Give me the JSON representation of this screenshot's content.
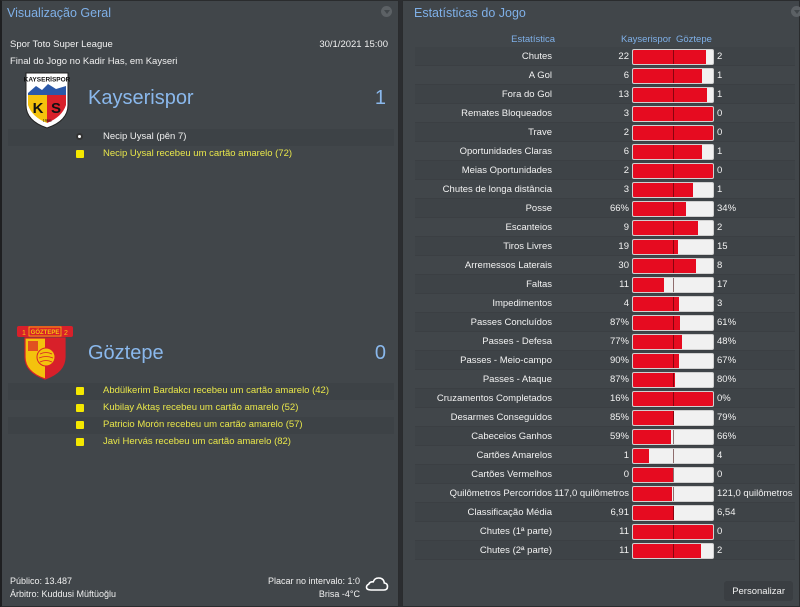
{
  "left_panel": {
    "title": "Visualização Geral",
    "competition": "Spor Toto Super League",
    "datetime": "30/1/2021 15:00",
    "venue_line": "Final do Jogo no Kadir Has, em Kayseri",
    "home": {
      "name": "Kayserispor",
      "score": "1",
      "crest_text": "KAYSERİSPOR",
      "crest_letters": "KS",
      "crest_year": "1966",
      "events": [
        {
          "type": "goal",
          "icon": "ball-icon",
          "text": "Necip Uysal (pên 7)"
        },
        {
          "type": "yellow-card",
          "icon": "yellow-card-icon",
          "text": "Necip Uysal recebeu um cartão amarelo (72)"
        }
      ]
    },
    "away": {
      "name": "Göztepe",
      "score": "0",
      "crest_text": "GÖZTEPE",
      "events": [
        {
          "type": "yellow-card",
          "icon": "yellow-card-icon",
          "text": "Abdülkerim Bardakcı recebeu um cartão amarelo (42)"
        },
        {
          "type": "yellow-card",
          "icon": "yellow-card-icon",
          "text": "Kubilay Aktaş recebeu um cartão amarelo (52)"
        },
        {
          "type": "yellow-card",
          "icon": "yellow-card-icon",
          "text": "Patricio Morón recebeu um cartão amarelo (57)"
        },
        {
          "type": "yellow-card",
          "icon": "yellow-card-icon",
          "text": "Javi Hervás recebeu um cartão amarelo (82)"
        }
      ]
    },
    "footer": {
      "attendance": "Público: 13.487",
      "referee": "Árbitro: Kuddusi Müftüoğlu",
      "halftime": "Placar no intervalo: 1:0",
      "weather": "Brisa -4°C",
      "weather_icon": "cloud-icon"
    }
  },
  "right_panel": {
    "title": "Estatísticas do Jogo",
    "headers": {
      "stat": "Estatística",
      "home": "Kayserispor",
      "away": "Göztepe"
    },
    "colors": {
      "home_bar": "#e60b20",
      "away_bar": "#f1f1f1"
    },
    "stats": [
      {
        "label": "Chutes",
        "home": "22",
        "away": "2",
        "home_ratio": 0.917
      },
      {
        "label": "A Gol",
        "home": "6",
        "away": "1",
        "home_ratio": 0.857
      },
      {
        "label": "Fora do Gol",
        "home": "13",
        "away": "1",
        "home_ratio": 0.929
      },
      {
        "label": "Remates Bloqueados",
        "home": "3",
        "away": "0",
        "home_ratio": 1.0
      },
      {
        "label": "Trave",
        "home": "2",
        "away": "0",
        "home_ratio": 1.0
      },
      {
        "label": "Oportunidades Claras",
        "home": "6",
        "away": "1",
        "home_ratio": 0.857
      },
      {
        "label": "Meias Oportunidades",
        "home": "2",
        "away": "0",
        "home_ratio": 1.0
      },
      {
        "label": "Chutes de longa distância",
        "home": "3",
        "away": "1",
        "home_ratio": 0.75
      },
      {
        "label": "Posse",
        "home": "66%",
        "away": "34%",
        "home_ratio": 0.66
      },
      {
        "label": "Escanteios",
        "home": "9",
        "away": "2",
        "home_ratio": 0.818
      },
      {
        "label": "Tiros Livres",
        "home": "19",
        "away": "15",
        "home_ratio": 0.559
      },
      {
        "label": "Arremessos Laterais",
        "home": "30",
        "away": "8",
        "home_ratio": 0.789
      },
      {
        "label": "Faltas",
        "home": "11",
        "away": "17",
        "home_ratio": 0.393
      },
      {
        "label": "Impedimentos",
        "home": "4",
        "away": "3",
        "home_ratio": 0.571
      },
      {
        "label": "Passes Concluídos",
        "home": "87%",
        "away": "61%",
        "home_ratio": 0.588
      },
      {
        "label": "Passes - Defesa",
        "home": "77%",
        "away": "48%",
        "home_ratio": 0.616
      },
      {
        "label": "Passes - Meio-campo",
        "home": "90%",
        "away": "67%",
        "home_ratio": 0.573
      },
      {
        "label": "Passes - Ataque",
        "home": "87%",
        "away": "80%",
        "home_ratio": 0.521
      },
      {
        "label": "Cruzamentos Completados",
        "home": "16%",
        "away": "0%",
        "home_ratio": 1.0
      },
      {
        "label": "Desarmes Conseguidos",
        "home": "85%",
        "away": "79%",
        "home_ratio": 0.518
      },
      {
        "label": "Cabeceios Ganhos",
        "home": "59%",
        "away": "66%",
        "home_ratio": 0.472
      },
      {
        "label": "Cartões Amarelos",
        "home": "1",
        "away": "4",
        "home_ratio": 0.2
      },
      {
        "label": "Cartões Vermelhos",
        "home": "0",
        "away": "0",
        "home_ratio": 0.5
      },
      {
        "label": "Quilômetros Percorridos",
        "home": "117,0 quilômetros",
        "away": "121,0 quilômetros",
        "home_ratio": 0.492
      },
      {
        "label": "Classificação Média",
        "home": "6,91",
        "away": "6,54",
        "home_ratio": 0.514
      },
      {
        "label": "Chutes (1ª parte)",
        "home": "11",
        "away": "0",
        "home_ratio": 1.0
      },
      {
        "label": "Chutes (2ª parte)",
        "home": "11",
        "away": "2",
        "home_ratio": 0.846
      }
    ],
    "customize_label": "Personalizar"
  }
}
